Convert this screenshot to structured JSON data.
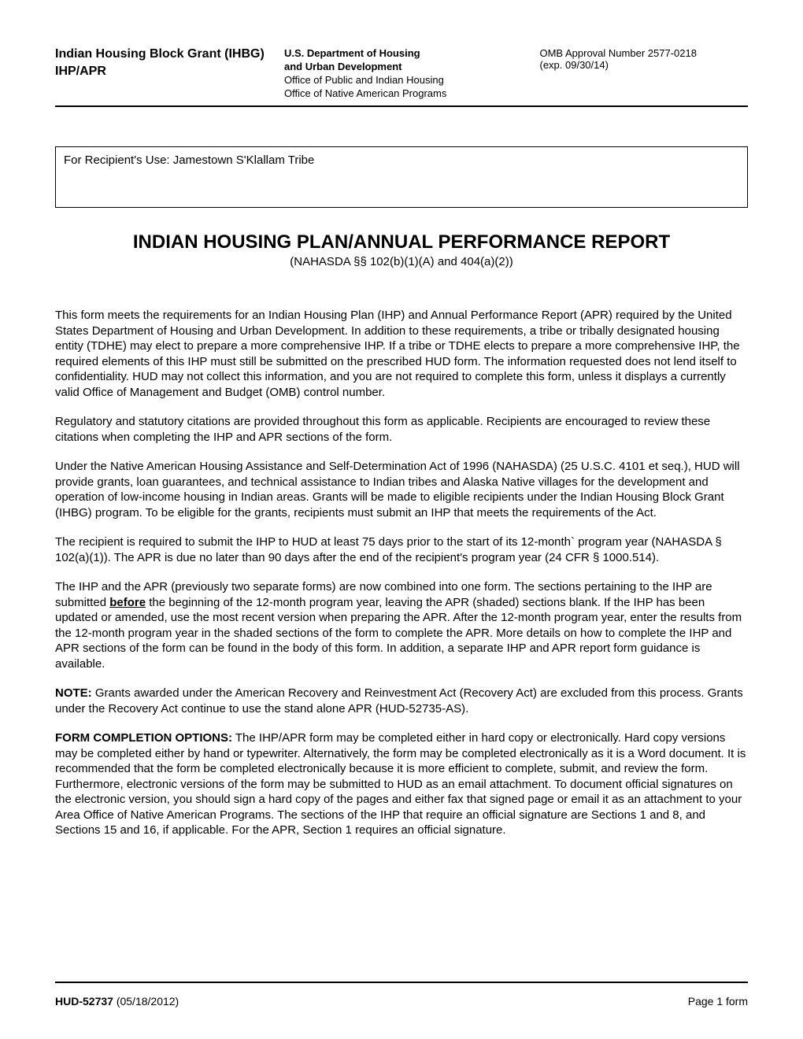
{
  "header": {
    "title_left": "Indian Housing Block Grant (IHBG)",
    "subtitle_left": "IHP/APR",
    "dept_line1": "U.S. Department of Housing",
    "dept_line2": "and Urban Development",
    "office_line1": "Office of Public and Indian Housing",
    "office_line2": "Office of Native American Programs",
    "omb_line1": "OMB Approval Number 2577-0218",
    "omb_line2": "(exp. 09/30/14)"
  },
  "recipient": {
    "label": "For Recipient's Use: ",
    "value": "Jamestown S'Klallam Tribe"
  },
  "main": {
    "title": "INDIAN HOUSING PLAN/ANNUAL PERFORMANCE REPORT",
    "subtitle": "(NAHASDA §§ 102(b)(1)(A) and 404(a)(2))"
  },
  "paragraphs": {
    "p1": "This form meets the requirements for an Indian Housing Plan (IHP) and Annual Performance Report (APR) required by the United States Department of Housing and Urban Development.  In addition to these requirements, a tribe or tribally designated housing entity (TDHE) may elect to prepare a more comprehensive IHP.  If a tribe or TDHE elects to prepare a more comprehensive IHP, the required elements of this IHP must still be submitted on the prescribed HUD form.  The information requested does not lend itself to confidentiality.  HUD may not collect this information, and you are not required to complete this form, unless it displays a currently valid Office of Management and Budget (OMB) control number.",
    "p2": "Regulatory and statutory citations are provided throughout this form as applicable.  Recipients are encouraged to review these citations when completing the IHP and APR sections of the form.",
    "p3": "Under the Native American Housing Assistance and Self-Determination Act of 1996 (NAHASDA) (25 U.S.C. 4101 et seq.), HUD will provide grants, loan guarantees, and technical assistance to Indian tribes and Alaska Native villages for the development and operation of low-income housing in Indian areas. Grants will be made to eligible recipients under the Indian Housing Block Grant (IHBG) program. To be eligible for the grants, recipients must submit an IHP that meets the requirements of the Act.",
    "p4": "The recipient is required to submit the IHP to HUD at least 75 days prior to the start of its 12-month` program year (NAHASDA § 102(a)(1)).  The APR is due no later than 90 days after the end of the recipient's program year (24 CFR § 1000.514).",
    "p5_before": "The IHP and the APR (previously two separate forms) are now combined into one form.  The sections pertaining to the IHP are submitted ",
    "p5_bold": "before",
    "p5_after": " the beginning of the 12-month program year, leaving the APR (shaded) sections blank.  If the IHP has been updated or amended, use the most recent version when preparing the APR.  After the 12-month program year, enter the results from the 12-month program year in the shaded sections of the form to complete the APR.  More details on how to complete the IHP and APR sections of the form can be found in the body of this form.  In addition, a separate IHP and APR report form guidance is available.",
    "p6_label": "NOTE:",
    "p6_text": "  Grants awarded under the American Recovery and Reinvestment Act (Recovery Act) are excluded from this process.  Grants under the Recovery Act continue to use the stand alone APR (HUD-52735-AS).",
    "p7_label": "FORM COMPLETION OPTIONS:",
    "p7_text": "  The IHP/APR form may be completed either in hard copy or electronically.  Hard copy versions may be completed either by hand or typewriter.  Alternatively, the form may be completed electronically as it is a Word document.  It is recommended that the form be completed electronically because it is more efficient to complete, submit, and review the form.  Furthermore, electronic versions of the form may be submitted to HUD as an email attachment.  To document official signatures on the electronic version, you should sign a hard copy of the pages and either fax that signed page or email it as an attachment to your Area Office of Native American Programs.  The sections of the IHP that require an official signature are Sections 1 and 8, and Sections 15 and 16, if applicable.  For the APR, Section 1 requires an official signature."
  },
  "footer": {
    "form_number": "HUD-52737",
    "form_date": " (05/18/2012)",
    "page_label": "Page   1      form"
  },
  "colors": {
    "text": "#000000",
    "background": "#ffffff",
    "border": "#000000"
  }
}
